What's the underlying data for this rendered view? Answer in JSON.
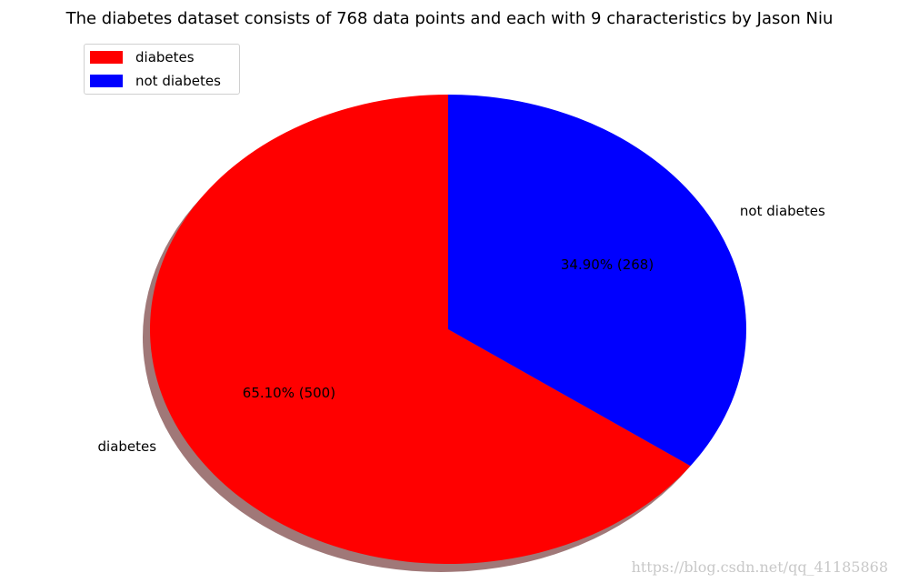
{
  "chart_data": {
    "type": "pie",
    "title": "The diabetes dataset consists of 768 data points and each with 9 characteristics by Jason Niu",
    "slices": [
      {
        "label": "diabetes",
        "value": 500,
        "percent_label": "65.10%  (500)",
        "color": "#ff0000"
      },
      {
        "label": "not diabetes",
        "value": 268,
        "percent_label": "34.90%  (268)",
        "color": "#0000ff"
      }
    ],
    "legend": {
      "placement": "upper-left",
      "entries": [
        {
          "label": "diabetes",
          "color": "#ff0000"
        },
        {
          "label": "not diabetes",
          "color": "#0000ff"
        }
      ]
    },
    "shadow": true,
    "shadow_color": "#a07878"
  },
  "watermark": "https://blog.csdn.net/qq_41185868"
}
